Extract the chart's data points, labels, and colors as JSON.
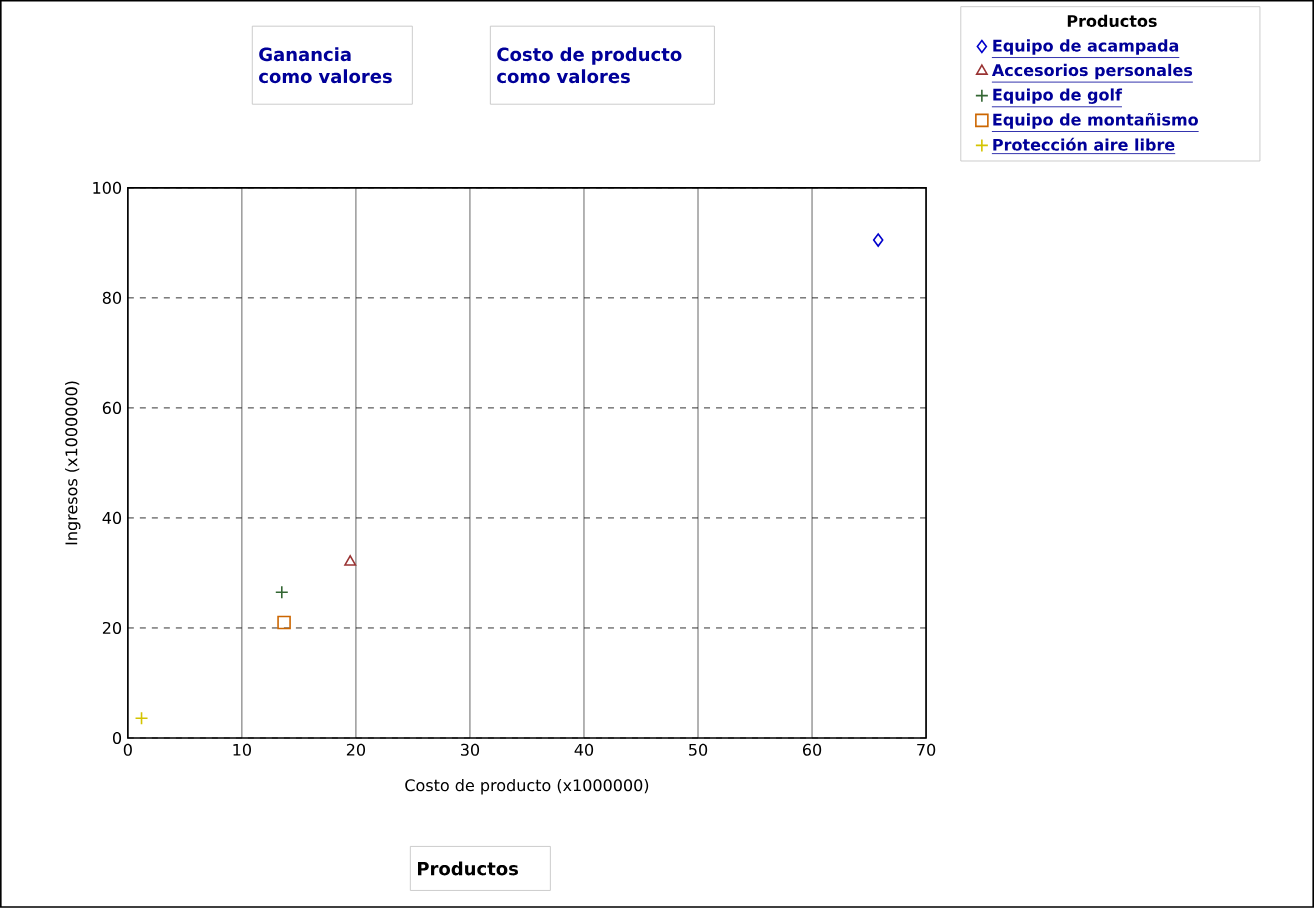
{
  "chart_data": {
    "type": "scatter",
    "xlabel": "Costo de producto (x1000000)",
    "ylabel": "Ingresos (x1000000)",
    "legend_title": "Productos",
    "annotations": [
      "Ganancia como valores",
      "Costo de producto como valores",
      "Productos"
    ],
    "xlim": [
      0,
      70
    ],
    "xticks": [
      0,
      10,
      20,
      30,
      40,
      50,
      60,
      70
    ],
    "ylim": [
      0,
      100
    ],
    "yticks": [
      0,
      20,
      40,
      60,
      80,
      100
    ],
    "grid": true,
    "legend": "top right",
    "series": [
      {
        "name": "Equipo de acampada",
        "color": "#0000cc",
        "marker": "diamond",
        "x": [
          65.8
        ],
        "values": [
          90.5
        ]
      },
      {
        "name": "Accesorios personales",
        "color": "#993333",
        "marker": "triangle",
        "x": [
          19.5
        ],
        "values": [
          32
        ]
      },
      {
        "name": "Equipo de golf",
        "color": "#336633",
        "marker": "cross",
        "x": [
          13.5
        ],
        "values": [
          26.5
        ]
      },
      {
        "name": "Equipo de montañismo",
        "color": "#cc6600",
        "marker": "square",
        "x": [
          13.7
        ],
        "values": [
          21
        ]
      },
      {
        "name": "Protección aire libre",
        "color": "#d4c400",
        "marker": "cross",
        "x": [
          1.2
        ],
        "values": [
          3.6
        ]
      }
    ]
  }
}
